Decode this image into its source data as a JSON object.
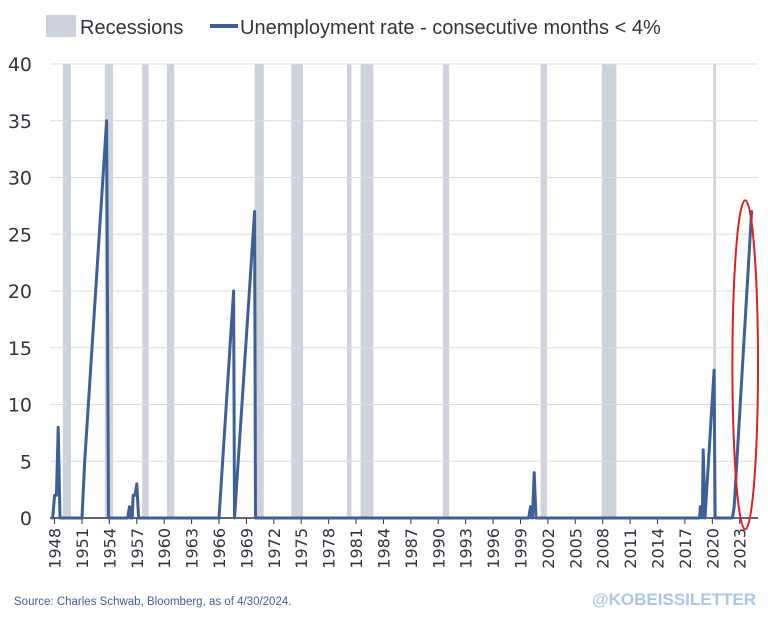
{
  "chart_data": {
    "type": "line",
    "xlim": [
      1947.5,
      2025.0
    ],
    "ylim": [
      0,
      40
    ],
    "grid": true,
    "legend_placement": "top-left",
    "legend": [
      {
        "label": "Recessions",
        "kind": "band"
      },
      {
        "label": "Unemployment rate - consecutive months < 4%",
        "kind": "line"
      }
    ],
    "y_ticks": [
      0,
      5,
      10,
      15,
      20,
      25,
      30,
      35,
      40
    ],
    "x_ticks": [
      1948,
      1951,
      1954,
      1957,
      1960,
      1963,
      1966,
      1969,
      1972,
      1975,
      1978,
      1981,
      1984,
      1987,
      1990,
      1993,
      1996,
      1999,
      2002,
      2005,
      2008,
      2011,
      2014,
      2017,
      2020,
      2023
    ],
    "recessions": [
      [
        1948.9,
        1949.8
      ],
      [
        1953.5,
        1954.4
      ],
      [
        1957.6,
        1958.3
      ],
      [
        1960.3,
        1961.1
      ],
      [
        1969.9,
        1970.9
      ],
      [
        1973.9,
        1975.2
      ],
      [
        1980.0,
        1980.5
      ],
      [
        1981.5,
        1982.9
      ],
      [
        1990.5,
        1991.2
      ],
      [
        2001.2,
        2001.9
      ],
      [
        2007.9,
        2009.5
      ],
      [
        2020.1,
        2020.4
      ]
    ],
    "series": [
      {
        "name": "Unemployment rate - consecutive months < 4%",
        "color": "#3f5f98",
        "x": [
          1947.8,
          1948.0,
          1948.2,
          1948.4,
          1948.6,
          1948.7,
          1948.9,
          1949.0,
          1951.0,
          1951.3,
          1953.7,
          1953.9,
          1954.0,
          1956.0,
          1956.2,
          1956.3,
          1956.5,
          1956.6,
          1956.8,
          1957.0,
          1957.2,
          1957.3,
          1957.5,
          1966.0,
          1967.6,
          1967.7,
          1969.9,
          1970.0,
          1999.9,
          2000.1,
          2000.3,
          2000.5,
          2000.7,
          2018.6,
          2018.7,
          2018.9,
          2019.0,
          2019.2,
          2020.2,
          2020.3,
          2022.2,
          2022.4,
          2024.3
        ],
        "y": [
          0,
          2,
          2,
          8,
          0,
          0,
          0,
          0,
          0,
          5,
          35,
          0,
          0,
          0,
          1,
          0,
          0,
          2,
          2,
          3,
          0,
          0,
          0,
          0,
          20,
          0,
          27,
          0,
          0,
          1,
          0,
          4,
          0,
          0,
          1,
          0,
          6,
          0,
          13,
          0,
          0,
          1,
          27
        ]
      }
    ],
    "annotation": {
      "shape": "ellipse",
      "color": "#e02020",
      "x_center": 2023.6,
      "y_center": 13.5,
      "x_radius": 1.4,
      "y_radius": 14.5
    }
  },
  "colors": {
    "recession_band": "#cdd2db",
    "grid": "#d9dde3",
    "axis": "#2f3640",
    "text": "#2f3640",
    "source_text": "#3f5f98",
    "watermark": "#a9c7e8"
  },
  "footer": {
    "source": "Source: Charles Schwab, Bloomberg, as of 4/30/2024.",
    "watermark": "@KOBEISSILETTER"
  }
}
